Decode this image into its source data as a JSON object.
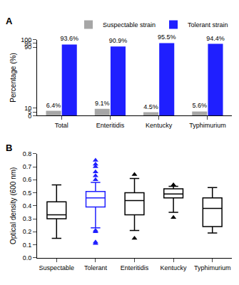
{
  "chart_data": [
    {
      "type": "bar",
      "title": "A",
      "categories": [
        "Total",
        "Enteritidis",
        "Kentucky",
        "Typhimurium"
      ],
      "y_label": "Percentage (%)",
      "series": [
        {
          "name": "Suspectable strain",
          "color": "#a6a6a6",
          "values": [
            6.4,
            9.1,
            4.5,
            5.6
          ],
          "value_labels": [
            "6.4%",
            "9.1%",
            "4.5%",
            "5.6%"
          ]
        },
        {
          "name": "Tolerant strain",
          "color": "#1f1fff",
          "values": [
            93.6,
            90.9,
            95.5,
            94.4
          ],
          "value_labels": [
            "93.6%",
            "90.9%",
            "95.5%",
            "94.4%"
          ]
        }
      ],
      "ylim": [
        0,
        100
      ],
      "yticks": [
        0,
        5,
        10,
        90,
        95,
        100
      ],
      "data_labels": true,
      "legend": "top right",
      "grid": false
    },
    {
      "type": "box",
      "title": "B",
      "categories": [
        "Suspectable",
        "Tolerant",
        "Enteritidis",
        "Kentucky",
        "Typhimurium"
      ],
      "y_label": "Optical density (600 nm)",
      "boxes": [
        {
          "name": "Suspectable",
          "color": "#000000",
          "lowerfence": 0.15,
          "q1": 0.3,
          "median": 0.33,
          "q3": 0.43,
          "upperfence": 0.56,
          "outliers": []
        },
        {
          "name": "Tolerant",
          "color": "#1f1fff",
          "lowerfence": 0.23,
          "q1": 0.39,
          "median": 0.46,
          "q3": 0.51,
          "upperfence": 0.58,
          "outliers": [
            0.11,
            0.12,
            0.2,
            0.21,
            0.6,
            0.63,
            0.66,
            0.7,
            0.72,
            0.75
          ]
        },
        {
          "name": "Enteritidis",
          "color": "#000000",
          "lowerfence": 0.21,
          "q1": 0.33,
          "median": 0.44,
          "q3": 0.5,
          "upperfence": 0.61,
          "outliers": [
            0.15,
            0.64
          ]
        },
        {
          "name": "Kentucky",
          "color": "#000000",
          "lowerfence": 0.35,
          "q1": 0.46,
          "median": 0.49,
          "q3": 0.53,
          "upperfence": 0.55,
          "outliers": [
            0.31,
            0.56
          ]
        },
        {
          "name": "Typhimurium",
          "color": "#000000",
          "lowerfence": 0.19,
          "q1": 0.24,
          "median": 0.38,
          "q3": 0.46,
          "upperfence": 0.54,
          "outliers": []
        }
      ],
      "marker": "triangle",
      "ylim": [
        0,
        0.8
      ],
      "yticks": [
        {
          "value": 0,
          "label": "0.0"
        },
        0.1,
        0.2,
        0.3,
        0.4,
        0.5,
        0.6,
        0.7,
        0.8
      ],
      "grid": false
    }
  ]
}
